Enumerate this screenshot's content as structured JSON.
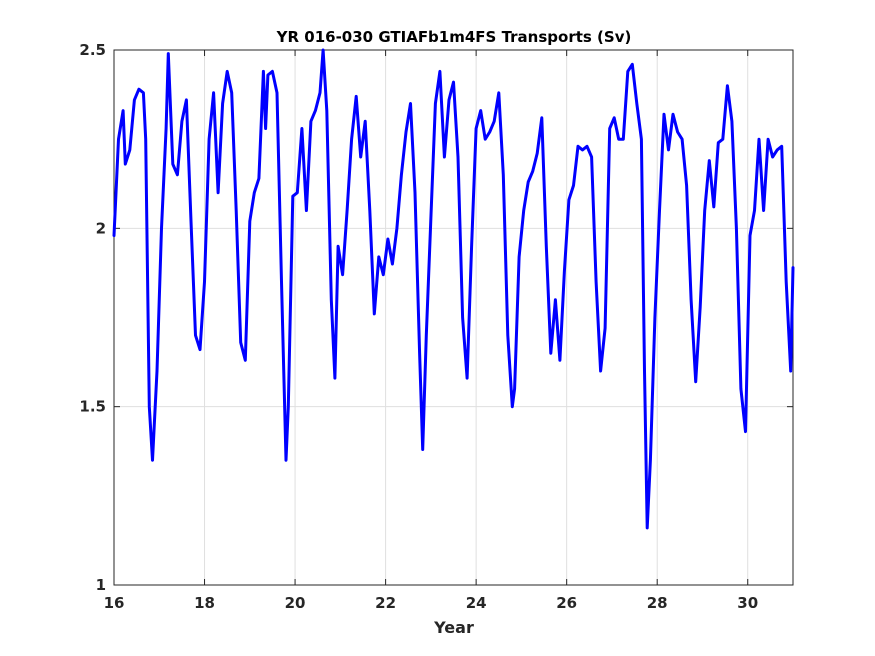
{
  "chart_data": {
    "type": "line",
    "title": "YR 016-030 GTIAFb1m4FS Transports (Sv)",
    "xlabel": "Year",
    "ylabel": "",
    "xlim": [
      16,
      31
    ],
    "ylim": [
      1,
      2.5
    ],
    "xticks": [
      16,
      18,
      20,
      22,
      24,
      26,
      28,
      30
    ],
    "xtick_labels": [
      "16",
      "18",
      "20",
      "22",
      "24",
      "26",
      "28",
      "30"
    ],
    "yticks": [
      1,
      1.5,
      2,
      2.5
    ],
    "ytick_labels": [
      "1",
      "1.5",
      "2",
      "2.5"
    ],
    "grid": true,
    "line_color": "#0000ff",
    "series": [
      {
        "name": "",
        "x": [
          16.0,
          16.1,
          16.2,
          16.25,
          16.35,
          16.45,
          16.55,
          16.65,
          16.7,
          16.78,
          16.85,
          16.95,
          17.05,
          17.15,
          17.2,
          17.3,
          17.4,
          17.5,
          17.6,
          17.7,
          17.8,
          17.9,
          18.0,
          18.1,
          18.2,
          18.3,
          18.4,
          18.5,
          18.6,
          18.7,
          18.8,
          18.9,
          19.0,
          19.1,
          19.2,
          19.3,
          19.35,
          19.4,
          19.5,
          19.6,
          19.7,
          19.8,
          19.85,
          19.95,
          20.05,
          20.15,
          20.25,
          20.35,
          20.45,
          20.55,
          20.62,
          20.7,
          20.8,
          20.88,
          20.95,
          21.05,
          21.15,
          21.25,
          21.35,
          21.45,
          21.55,
          21.65,
          21.75,
          21.85,
          21.95,
          22.05,
          22.15,
          22.25,
          22.35,
          22.45,
          22.55,
          22.65,
          22.75,
          22.82,
          22.9,
          23.0,
          23.1,
          23.2,
          23.3,
          23.4,
          23.5,
          23.6,
          23.7,
          23.8,
          23.9,
          24.0,
          24.1,
          24.2,
          24.3,
          24.4,
          24.5,
          24.6,
          24.7,
          24.8,
          24.85,
          24.95,
          25.05,
          25.15,
          25.25,
          25.35,
          25.45,
          25.55,
          25.65,
          25.75,
          25.85,
          25.95,
          26.05,
          26.15,
          26.25,
          26.35,
          26.45,
          26.55,
          26.65,
          26.75,
          26.85,
          26.95,
          27.05,
          27.15,
          27.25,
          27.35,
          27.45,
          27.55,
          27.65,
          27.72,
          27.78,
          27.85,
          27.95,
          28.05,
          28.15,
          28.25,
          28.35,
          28.45,
          28.55,
          28.65,
          28.75,
          28.85,
          28.95,
          29.05,
          29.15,
          29.25,
          29.35,
          29.45,
          29.55,
          29.65,
          29.75,
          29.85,
          29.95,
          30.05,
          30.15,
          30.25,
          30.35,
          30.45,
          30.55,
          30.65,
          30.75,
          30.85,
          30.95,
          31.0
        ],
        "y": [
          1.98,
          2.25,
          2.33,
          2.18,
          2.22,
          2.36,
          2.39,
          2.38,
          2.25,
          1.5,
          1.35,
          1.6,
          2.0,
          2.28,
          2.49,
          2.18,
          2.15,
          2.3,
          2.36,
          2.02,
          1.7,
          1.66,
          1.85,
          2.25,
          2.38,
          2.1,
          2.35,
          2.44,
          2.38,
          2.05,
          1.68,
          1.63,
          2.02,
          2.1,
          2.14,
          2.44,
          2.28,
          2.43,
          2.44,
          2.38,
          1.85,
          1.35,
          1.5,
          2.09,
          2.1,
          2.28,
          2.05,
          2.3,
          2.33,
          2.38,
          2.5,
          2.33,
          1.8,
          1.58,
          1.95,
          1.87,
          2.05,
          2.25,
          2.37,
          2.2,
          2.3,
          2.05,
          1.76,
          1.92,
          1.87,
          1.97,
          1.9,
          2.0,
          2.15,
          2.27,
          2.35,
          2.1,
          1.65,
          1.38,
          1.7,
          2.03,
          2.35,
          2.44,
          2.2,
          2.36,
          2.41,
          2.2,
          1.75,
          1.58,
          1.95,
          2.28,
          2.33,
          2.25,
          2.27,
          2.3,
          2.38,
          2.15,
          1.7,
          1.5,
          1.55,
          1.92,
          2.05,
          2.13,
          2.16,
          2.21,
          2.31,
          1.95,
          1.65,
          1.8,
          1.63,
          1.88,
          2.08,
          2.12,
          2.23,
          2.22,
          2.23,
          2.2,
          1.85,
          1.6,
          1.72,
          2.28,
          2.31,
          2.25,
          2.25,
          2.44,
          2.46,
          2.35,
          2.25,
          1.6,
          1.16,
          1.35,
          1.75,
          2.05,
          2.32,
          2.22,
          2.32,
          2.27,
          2.25,
          2.12,
          1.8,
          1.57,
          1.78,
          2.05,
          2.19,
          2.06,
          2.24,
          2.25,
          2.4,
          2.3,
          2.0,
          1.55,
          1.43,
          1.98,
          2.05,
          2.25,
          2.05,
          2.25,
          2.2,
          2.22,
          2.23,
          1.85,
          1.6,
          1.89
        ]
      }
    ]
  }
}
